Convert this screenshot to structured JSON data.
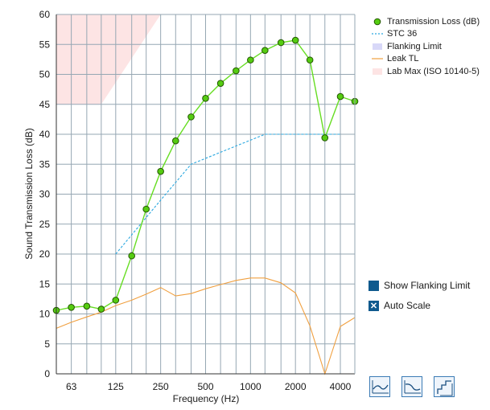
{
  "chart_data": {
    "type": "line",
    "xlabel": "Frequency (Hz)",
    "ylabel": "Sound Transmission Loss (dB)",
    "x_scale": "log",
    "xlim": [
      50,
      5000
    ],
    "ylim": [
      0,
      60
    ],
    "y_ticks": [
      0,
      5,
      10,
      15,
      20,
      25,
      30,
      35,
      40,
      45,
      50,
      55,
      60
    ],
    "x_tick_labels": [
      {
        "value": 63,
        "label": "63"
      },
      {
        "value": 125,
        "label": "125"
      },
      {
        "value": 250,
        "label": "250"
      },
      {
        "value": 500,
        "label": "500"
      },
      {
        "value": 1000,
        "label": "1000"
      },
      {
        "value": 2000,
        "label": "2000"
      },
      {
        "value": 4000,
        "label": "4000"
      }
    ],
    "grid": true,
    "legend_position": "top-right",
    "series": [
      {
        "name": "Transmission Loss (dB)",
        "color": "#66dd22",
        "marker_color": "#55cc11",
        "x": [
          50,
          63,
          80,
          100,
          125,
          160,
          200,
          250,
          315,
          400,
          500,
          630,
          800,
          1000,
          1250,
          1600,
          2000,
          2500,
          3150,
          4000,
          5000
        ],
        "y": [
          10.6,
          11.1,
          11.3,
          10.8,
          12.3,
          19.7,
          27.5,
          33.8,
          38.9,
          42.9,
          46.0,
          48.5,
          50.6,
          52.4,
          54.0,
          55.3,
          55.7,
          52.4,
          39.4,
          46.3,
          45.5
        ]
      },
      {
        "name": "STC 36",
        "color": "#2aa8e0",
        "dashed": true,
        "x": [
          125,
          250,
          400,
          1250,
          4000
        ],
        "y": [
          20,
          29,
          35,
          40,
          40
        ]
      },
      {
        "name": "Leak TL",
        "color": "#f0a040",
        "x": [
          50,
          63,
          80,
          100,
          125,
          160,
          200,
          250,
          315,
          400,
          500,
          630,
          800,
          1000,
          1250,
          1600,
          2000,
          2500,
          3150,
          4000,
          5000
        ],
        "y": [
          7.6,
          8.6,
          9.5,
          10.3,
          11.4,
          12.3,
          13.3,
          14.4,
          13.0,
          13.4,
          14.2,
          14.9,
          15.6,
          16.0,
          16.0,
          15.2,
          13.5,
          8.0,
          0,
          7.9,
          9.4
        ]
      }
    ],
    "regions": [
      {
        "name": "Flanking Limit",
        "color": "#d8d8f8",
        "visible": false
      },
      {
        "name": "Lab Max (ISO 10140-5)",
        "color": "#fde4e4",
        "x": [
          50,
          100,
          250
        ],
        "upper": 60,
        "lower_y": [
          45,
          45,
          60
        ]
      }
    ]
  },
  "legend": {
    "items": [
      {
        "label": "Transmission Loss (dB)",
        "kind": "marker"
      },
      {
        "label": "STC 36",
        "kind": "dash"
      },
      {
        "label": "Flanking Limit",
        "kind": "fill-blue"
      },
      {
        "label": "Leak TL",
        "kind": "line"
      },
      {
        "label": "Lab Max (ISO 10140-5)",
        "kind": "fill-pink"
      }
    ]
  },
  "options": {
    "show_flanking_label": "Show Flanking Limit",
    "show_flanking_checked": false,
    "auto_scale_label": "Auto Scale",
    "auto_scale_checked": true
  },
  "toolbar": {
    "icons": [
      "curve-fit-icon",
      "curve-dip-icon",
      "step-plot-icon"
    ]
  }
}
